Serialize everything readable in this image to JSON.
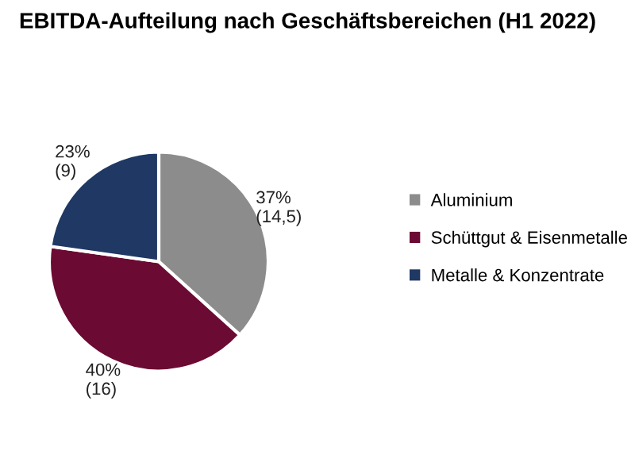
{
  "chart_data": {
    "type": "pie",
    "title": "EBITDA-Aufteilung nach Geschäftsbereichen (H1 2022)",
    "categories": [
      "Aluminium",
      "Schüttgut & Eisenmetalle",
      "Metalle & Konzentrate"
    ],
    "values": [
      14.5,
      16,
      9
    ],
    "value_labels": [
      "37%\n(14,5)",
      "40%\n(16)",
      "23%\n(9)"
    ],
    "colors": [
      "#8c8c8c",
      "#6b0a32",
      "#1f3864"
    ],
    "legend": "right"
  }
}
